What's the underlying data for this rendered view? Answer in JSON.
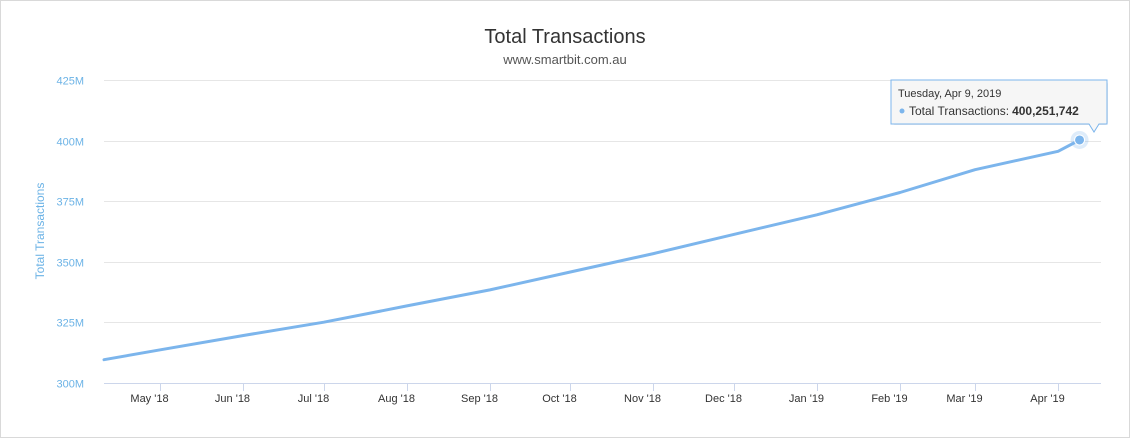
{
  "chart_data": {
    "type": "line",
    "title": "Total Transactions",
    "subtitle": "www.smartbit.com.au",
    "ylabel": "Total Transactions",
    "xlabel": "",
    "ylim": [
      300,
      425
    ],
    "y_unit": "M",
    "y_ticks": [
      "300M",
      "325M",
      "350M",
      "375M",
      "400M",
      "425M"
    ],
    "x_ticks": [
      {
        "label": "May '18",
        "date": "2018-05-01"
      },
      {
        "label": "Jun '18",
        "date": "2018-06-01"
      },
      {
        "label": "Jul '18",
        "date": "2018-07-01"
      },
      {
        "label": "Aug '18",
        "date": "2018-08-01"
      },
      {
        "label": "Sep '18",
        "date": "2018-09-01"
      },
      {
        "label": "Oct '18",
        "date": "2018-10-01"
      },
      {
        "label": "Nov '18",
        "date": "2018-11-01"
      },
      {
        "label": "Dec '18",
        "date": "2018-12-01"
      },
      {
        "label": "Jan '19",
        "date": "2019-01-01"
      },
      {
        "label": "Feb '19",
        "date": "2019-02-01"
      },
      {
        "label": "Mar '19",
        "date": "2019-03-01"
      },
      {
        "label": "Apr '19",
        "date": "2019-04-01"
      }
    ],
    "xlim": [
      "2018-04-10",
      "2019-04-17"
    ],
    "grid": true,
    "legend": "none",
    "series": [
      {
        "color": "#7cb5ec",
        "points": [
          {
            "x": "2018-04-10",
            "y": 309.6
          },
          {
            "x": "2018-05-01",
            "y": 313.7
          },
          {
            "x": "2018-06-01",
            "y": 319.6
          },
          {
            "x": "2018-07-01",
            "y": 325.1
          },
          {
            "x": "2018-08-01",
            "y": 331.8
          },
          {
            "x": "2018-09-01",
            "y": 338.4
          },
          {
            "x": "2018-10-01",
            "y": 345.8
          },
          {
            "x": "2018-11-01",
            "y": 353.4
          },
          {
            "x": "2018-12-01",
            "y": 361.3
          },
          {
            "x": "2019-01-01",
            "y": 369.4
          },
          {
            "x": "2019-02-01",
            "y": 378.6
          },
          {
            "x": "2019-03-01",
            "y": 388.0
          },
          {
            "x": "2019-04-01",
            "y": 395.6
          },
          {
            "x": "2019-04-09",
            "y": 400.251742
          }
        ]
      }
    ],
    "tooltip": {
      "date": "Tuesday, Apr 9, 2019",
      "series_name": "Total Transactions",
      "value": "400,251,742",
      "x": "2019-04-09",
      "y": 400.251742
    }
  }
}
